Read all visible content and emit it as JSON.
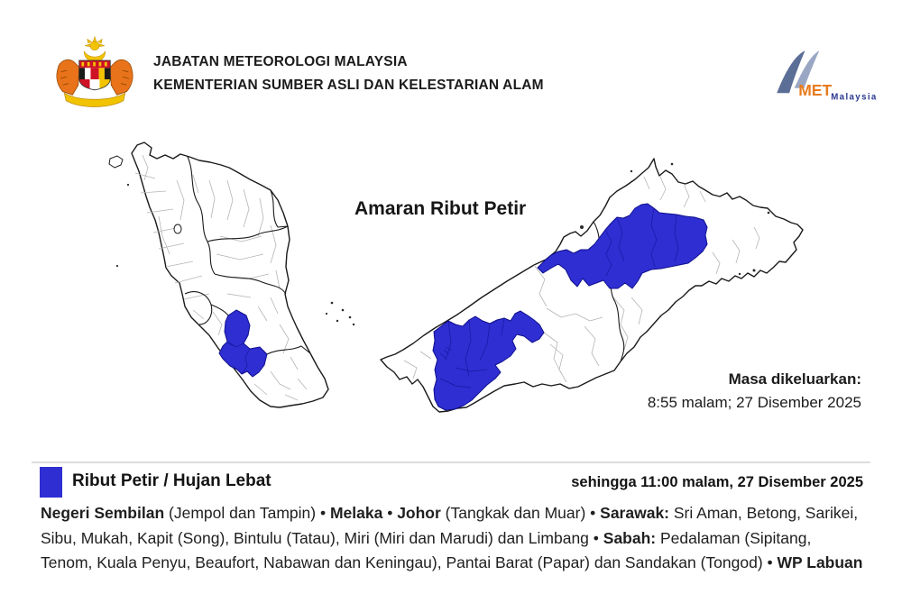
{
  "header": {
    "agency_line1": "JABATAN METEOROLOGI MALAYSIA",
    "agency_line2": "KEMENTERIAN SUMBER ASLI DAN KELESTARIAN ALAM",
    "crest_icon": "malaysia-coat-of-arms",
    "met_logo_met": "MET",
    "met_logo_malaysia": "Malaysia",
    "met_orange": "#E87B1E",
    "met_navy": "#2B3990"
  },
  "map": {
    "title": "Amaran Ribut Petir",
    "issued_label": "Masa dikeluarkan:",
    "issued_time": "8:55 malam; 27 Disember 2025",
    "warning_color": "#2E2ED2"
  },
  "legend": {
    "swatch_color": "#2E2ED2",
    "label": "Ribut Petir / Hujan Lebat",
    "validity": "sehingga 11:00 malam, 27 Disember 2025"
  },
  "affected_areas": {
    "segments": [
      {
        "text": "Negeri Sembilan",
        "bold": true
      },
      {
        "text": " (Jempol dan Tampin) • ",
        "bold": false
      },
      {
        "text": "Melaka",
        "bold": true
      },
      {
        "text": " • ",
        "bold": false
      },
      {
        "text": "Johor",
        "bold": true
      },
      {
        "text": " (Tangkak dan Muar) • ",
        "bold": false
      },
      {
        "text": "Sarawak:",
        "bold": true
      },
      {
        "text": " Sri Aman, Betong, Sarikei, Sibu, Mukah, Kapit (Song), Bintulu (Tatau), Miri (Miri dan Marudi) dan Limbang • ",
        "bold": false
      },
      {
        "text": "Sabah:",
        "bold": true
      },
      {
        "text": " Pedalaman (Sipitang, Tenom, Kuala Penyu, Beaufort, Nabawan dan Keningau), Pantai Barat (Papar) dan Sandakan (Tongod) • ",
        "bold": false
      },
      {
        "text": "WP Labuan",
        "bold": true
      }
    ]
  }
}
